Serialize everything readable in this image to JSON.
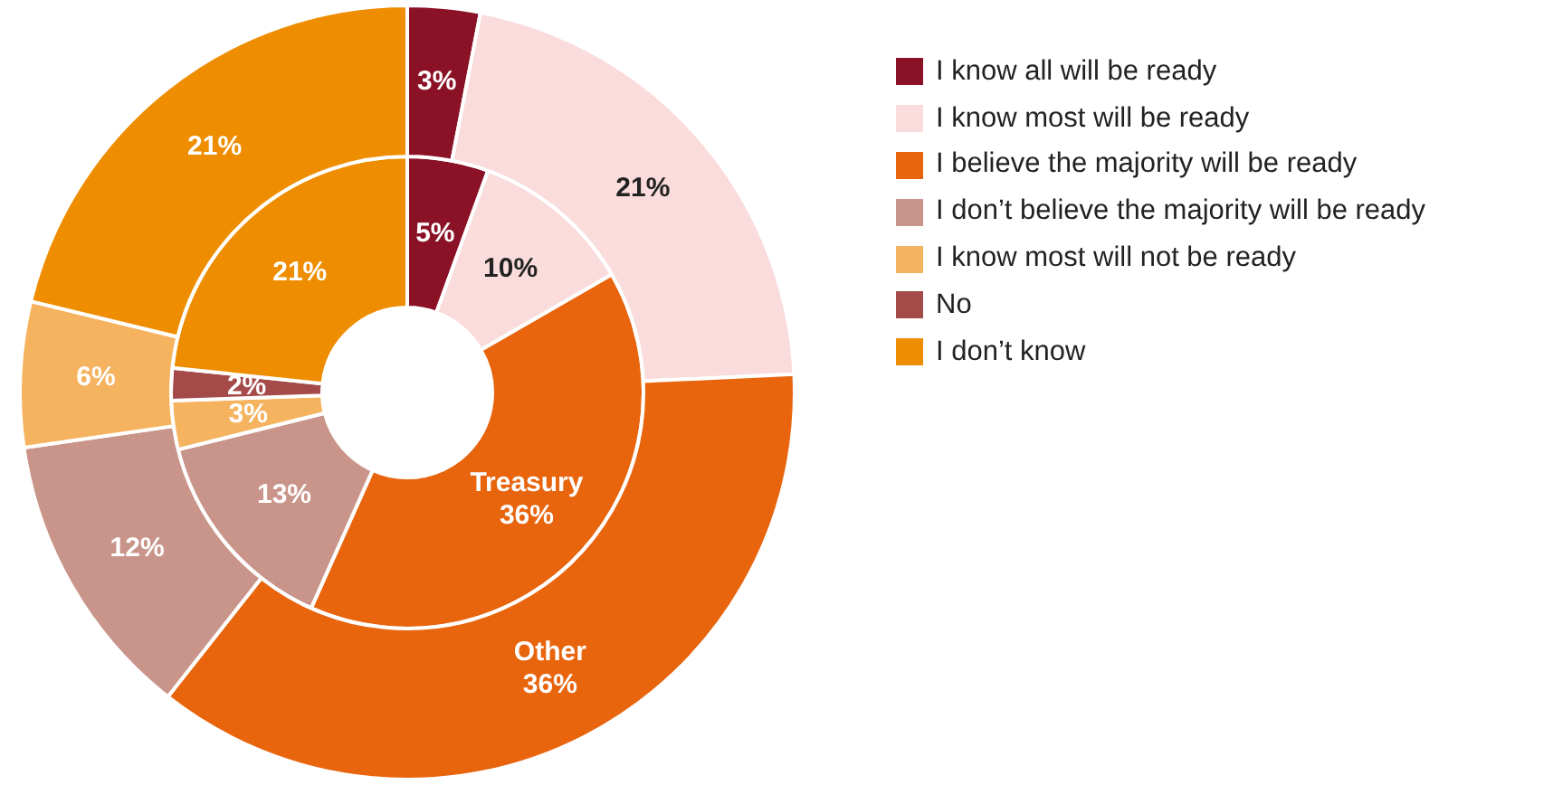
{
  "chart_data": {
    "type": "donut",
    "legend": "right",
    "data_labels": true,
    "categories": [
      "I know all will be ready",
      "I know most will be ready",
      "I believe the majority will be ready",
      "I don’t believe the majority will be ready",
      "I know most will not be ready",
      "No",
      "I don’t know"
    ],
    "colors": [
      "#8a1126",
      "#fadcdc",
      "#e8650e",
      "#c9958a",
      "#f5b35f",
      "#a44b4a",
      "#ef8d00"
    ],
    "series": [
      {
        "name": "Other",
        "values": [
          3,
          21,
          36,
          12,
          6,
          null,
          21
        ],
        "value_labels": [
          "3%",
          "21%",
          "36%",
          "12%",
          "6%",
          null,
          "21%"
        ]
      },
      {
        "name": "Treasury",
        "values": [
          5,
          10,
          36,
          13,
          3,
          2,
          21
        ],
        "value_labels": [
          "5%",
          "10%",
          "36%",
          "13%",
          "3%",
          "2%",
          "21%"
        ]
      }
    ]
  }
}
